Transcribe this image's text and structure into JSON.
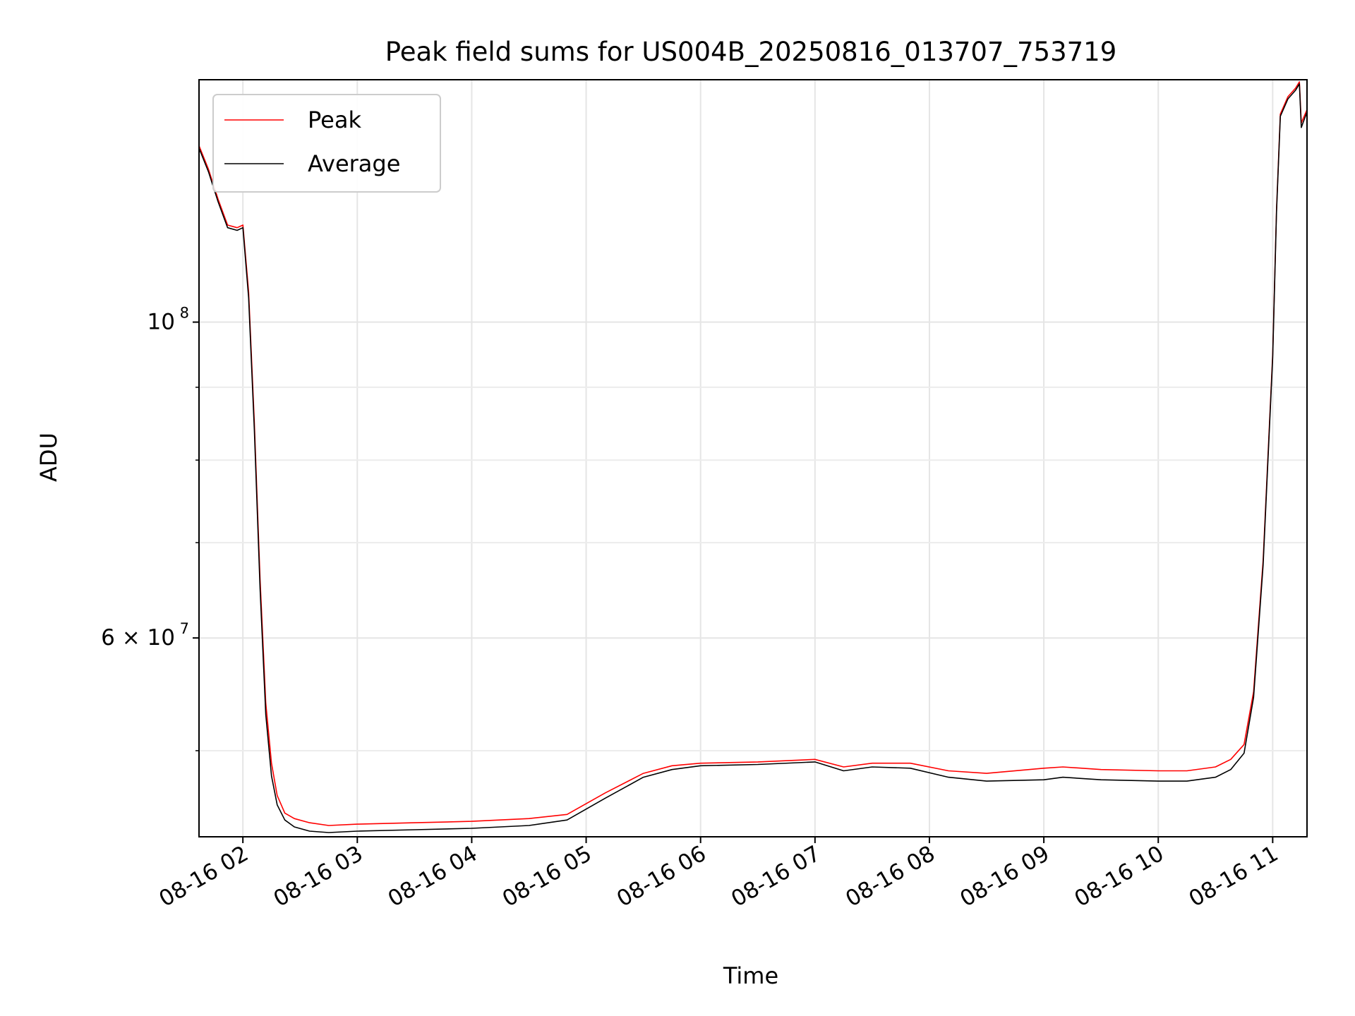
{
  "chart_data": {
    "type": "line",
    "title": "Peak field sums for US004B_20250816_013707_753719",
    "xlabel": "Time",
    "ylabel": "ADU",
    "y_scale": "log",
    "grid": true,
    "legend_position": "top-left",
    "xlim": [
      "08-16 01:37",
      "08-16 11:18"
    ],
    "ylim": [
      43500000,
      148000000
    ],
    "x_ticks": [
      {
        "label": "08-16 02",
        "time": "08-16 02:00"
      },
      {
        "label": "08-16 03",
        "time": "08-16 03:00"
      },
      {
        "label": "08-16 04",
        "time": "08-16 04:00"
      },
      {
        "label": "08-16 05",
        "time": "08-16 05:00"
      },
      {
        "label": "08-16 06",
        "time": "08-16 06:00"
      },
      {
        "label": "08-16 07",
        "time": "08-16 07:00"
      },
      {
        "label": "08-16 08",
        "time": "08-16 08:00"
      },
      {
        "label": "08-16 09",
        "time": "08-16 09:00"
      },
      {
        "label": "08-16 10",
        "time": "08-16 10:00"
      },
      {
        "label": "08-16 11",
        "time": "08-16 11:00"
      }
    ],
    "y_major_ticks": [
      {
        "value": 100000000,
        "base": "10",
        "exp": "8"
      },
      {
        "value": 60000000,
        "base": "6 × 10",
        "exp": "7"
      }
    ],
    "y_minor_ticks": [
      50000000,
      70000000,
      80000000,
      90000000
    ],
    "series": [
      {
        "name": "Peak",
        "color": "#ff0000",
        "x": [
          "08-16 01:37",
          "08-16 01:42",
          "08-16 01:47",
          "08-16 01:52",
          "08-16 01:57",
          "08-16 02:00",
          "08-16 02:03",
          "08-16 02:06",
          "08-16 02:09",
          "08-16 02:12",
          "08-16 02:15",
          "08-16 02:18",
          "08-16 02:22",
          "08-16 02:27",
          "08-16 02:35",
          "08-16 02:45",
          "08-16 03:00",
          "08-16 03:30",
          "08-16 04:00",
          "08-16 04:30",
          "08-16 04:50",
          "08-16 05:10",
          "08-16 05:30",
          "08-16 05:45",
          "08-16 06:00",
          "08-16 06:30",
          "08-16 07:00",
          "08-16 07:15",
          "08-16 07:30",
          "08-16 07:50",
          "08-16 08:10",
          "08-16 08:30",
          "08-16 09:00",
          "08-16 09:10",
          "08-16 09:30",
          "08-16 10:00",
          "08-16 10:15",
          "08-16 10:30",
          "08-16 10:38",
          "08-16 10:45",
          "08-16 10:50",
          "08-16 10:55",
          "08-16 11:00",
          "08-16 11:02",
          "08-16 11:04",
          "08-16 11:08",
          "08-16 11:12",
          "08-16 11:14",
          "08-16 11:15",
          "08-16 11:18"
        ],
        "y": [
          133000000,
          128000000,
          122000000,
          117000000,
          116500000,
          117000000,
          105000000,
          85000000,
          66000000,
          54000000,
          49000000,
          46500000,
          45200000,
          44800000,
          44500000,
          44300000,
          44400000,
          44500000,
          44600000,
          44800000,
          45100000,
          46700000,
          48200000,
          48800000,
          49000000,
          49100000,
          49300000,
          48700000,
          49000000,
          49000000,
          48400000,
          48200000,
          48600000,
          48700000,
          48500000,
          48400000,
          48400000,
          48700000,
          49300000,
          50500000,
          55000000,
          68000000,
          95000000,
          120000000,
          140000000,
          144000000,
          146000000,
          147500000,
          138000000,
          141000000
        ]
      },
      {
        "name": "Average",
        "color": "#000000",
        "x": [
          "08-16 01:37",
          "08-16 01:42",
          "08-16 01:47",
          "08-16 01:52",
          "08-16 01:57",
          "08-16 02:00",
          "08-16 02:03",
          "08-16 02:06",
          "08-16 02:09",
          "08-16 02:12",
          "08-16 02:15",
          "08-16 02:18",
          "08-16 02:22",
          "08-16 02:27",
          "08-16 02:35",
          "08-16 02:45",
          "08-16 03:00",
          "08-16 03:30",
          "08-16 04:00",
          "08-16 04:30",
          "08-16 04:50",
          "08-16 05:10",
          "08-16 05:30",
          "08-16 05:45",
          "08-16 06:00",
          "08-16 06:30",
          "08-16 07:00",
          "08-16 07:15",
          "08-16 07:30",
          "08-16 07:50",
          "08-16 08:10",
          "08-16 08:30",
          "08-16 09:00",
          "08-16 09:10",
          "08-16 09:30",
          "08-16 10:00",
          "08-16 10:15",
          "08-16 10:30",
          "08-16 10:38",
          "08-16 10:45",
          "08-16 10:50",
          "08-16 10:55",
          "08-16 11:00",
          "08-16 11:02",
          "08-16 11:04",
          "08-16 11:08",
          "08-16 11:12",
          "08-16 11:14",
          "08-16 11:15",
          "08-16 11:18"
        ],
        "y": [
          132500000,
          127500000,
          121500000,
          116500000,
          116000000,
          116500000,
          104000000,
          84000000,
          65000000,
          53000000,
          48000000,
          45800000,
          44700000,
          44200000,
          43900000,
          43800000,
          43900000,
          44000000,
          44100000,
          44300000,
          44700000,
          46300000,
          47900000,
          48500000,
          48800000,
          48900000,
          49100000,
          48400000,
          48700000,
          48600000,
          47900000,
          47600000,
          47700000,
          47900000,
          47700000,
          47600000,
          47600000,
          47900000,
          48500000,
          49800000,
          54500000,
          67500000,
          94500000,
          119500000,
          139500000,
          143500000,
          145500000,
          147000000,
          137000000,
          140500000
        ]
      }
    ]
  }
}
